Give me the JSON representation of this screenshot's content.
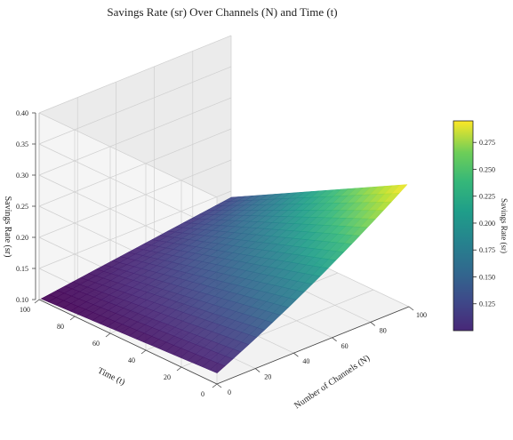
{
  "chart_data": {
    "type": "surface",
    "title": "Savings Rate (sr) Over Channels (N) and Time (t)",
    "xlabel": "Number of Channels (N)",
    "ylabel": "Time (t)",
    "zlabel": "Savings Rate (sr)",
    "x_ticks": [
      "0",
      "20",
      "40",
      "60",
      "80",
      "100"
    ],
    "y_ticks": [
      "0",
      "20",
      "40",
      "60",
      "80",
      "100"
    ],
    "z_ticks": [
      "0.10",
      "0.15",
      "0.20",
      "0.25",
      "0.30",
      "0.35",
      "0.40"
    ],
    "xlim": [
      0,
      100
    ],
    "ylim": [
      0,
      100
    ],
    "zlim": [
      0.1,
      0.4
    ],
    "grid": true,
    "colormap": "viridis",
    "colorbar": {
      "label": "Savings Rate (sr)",
      "ticks": [
        "0.125",
        "0.150",
        "0.175",
        "0.200",
        "0.225",
        "0.250",
        "0.275"
      ],
      "range": [
        0.1,
        0.295
      ]
    },
    "corner_values": [
      {
        "N": 1,
        "t": 1,
        "sr": 0.115
      },
      {
        "N": 100,
        "t": 1,
        "sr": 0.295
      },
      {
        "N": 1,
        "t": 100,
        "sr": 0.1
      },
      {
        "N": 100,
        "t": 100,
        "sr": 0.14
      }
    ]
  }
}
